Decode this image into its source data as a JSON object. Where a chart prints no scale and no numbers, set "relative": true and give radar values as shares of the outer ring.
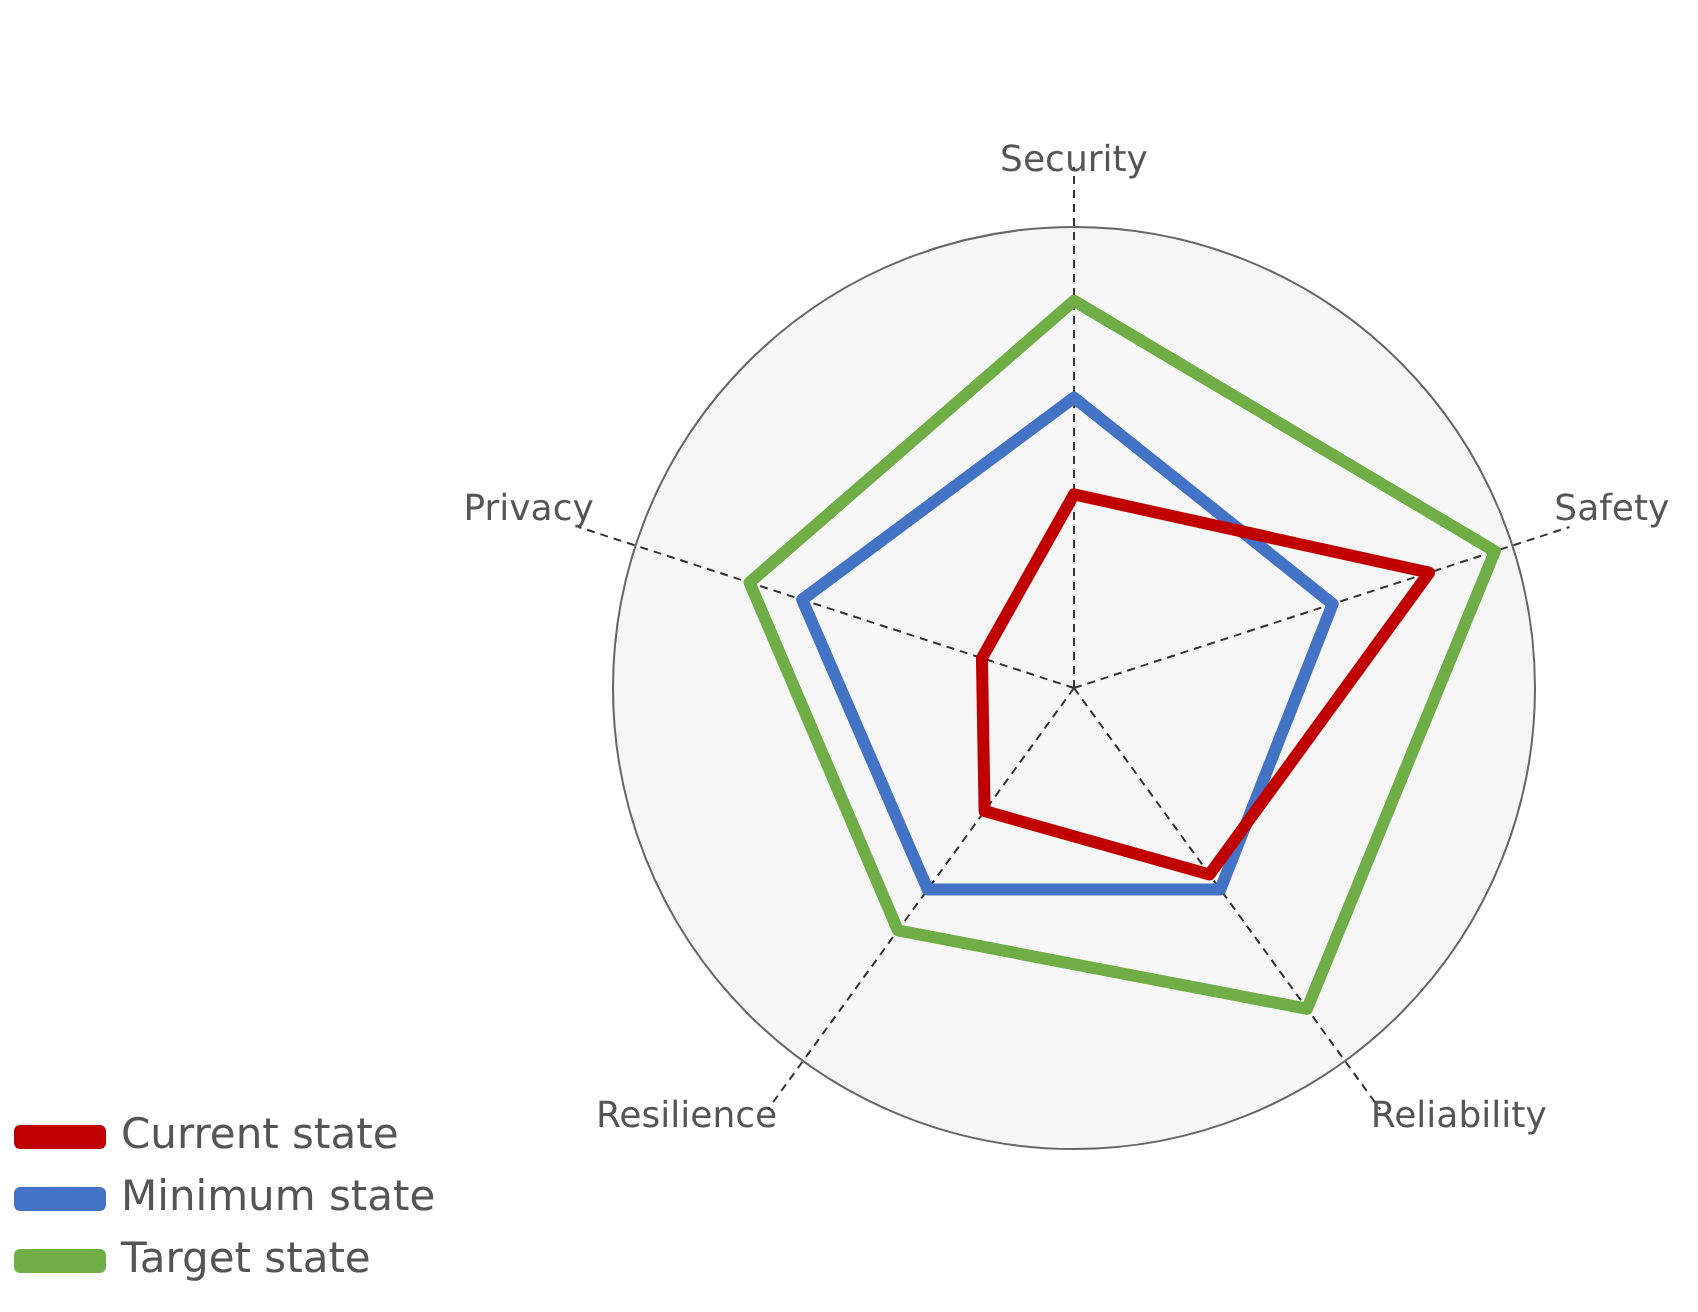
{
  "chart_data": {
    "type": "radar",
    "relative": true,
    "categories": [
      "Security",
      "Safety",
      "Reliability",
      "Resilience",
      "Privacy"
    ],
    "series": [
      {
        "name": "Current state",
        "color": "#c00000",
        "values": [
          0.42,
          0.81,
          0.5,
          0.33,
          0.21
        ]
      },
      {
        "name": "Minimum state",
        "color": "#4472c4",
        "values": [
          0.63,
          0.59,
          0.54,
          0.54,
          0.62
        ]
      },
      {
        "name": "Target state",
        "color": "#70ad47",
        "values": [
          0.84,
          0.96,
          0.86,
          0.65,
          0.74
        ]
      }
    ],
    "legend": "bottom left",
    "marker": "none",
    "line_style": "solid"
  }
}
